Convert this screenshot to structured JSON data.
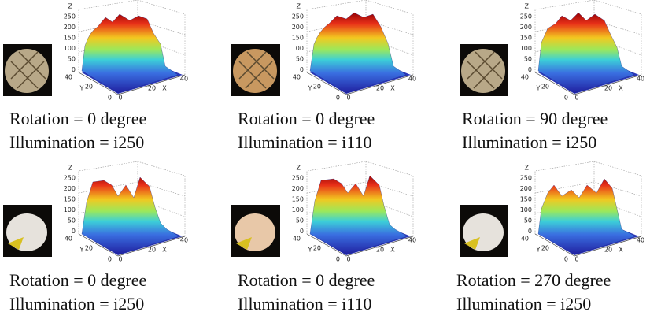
{
  "panels": [
    {
      "caption": [
        "Rotation = 0 degree",
        "Illumination = i250"
      ],
      "axes": {
        "z_label": "Z",
        "z_ticks": [
          250,
          200,
          150,
          100,
          50,
          0
        ],
        "y_label": "Y",
        "y_ticks": [
          40,
          20,
          0
        ],
        "x_label": "X",
        "x_ticks": [
          0,
          20,
          40
        ]
      }
    },
    {
      "caption": [
        "Rotation = 0 degree",
        "Illumination = i110"
      ],
      "axes": {
        "z_label": "Z",
        "z_ticks": [
          250,
          200,
          150,
          100,
          50,
          0
        ],
        "y_label": "Y",
        "y_ticks": [
          40,
          20,
          0
        ],
        "x_label": "X",
        "x_ticks": [
          0,
          20,
          40
        ]
      }
    },
    {
      "caption": [
        "Rotation = 90 degree",
        "Illumination = i250"
      ],
      "axes": {
        "z_label": "Z",
        "z_ticks": [
          250,
          200,
          150,
          100,
          50,
          0
        ],
        "y_label": "Y",
        "y_ticks": [
          40,
          20,
          0
        ],
        "x_label": "X",
        "x_ticks": [
          0,
          20,
          40
        ]
      }
    },
    {
      "caption": [
        "Rotation = 0 degree",
        "Illumination = i250"
      ],
      "axes": {
        "z_label": "Z",
        "z_ticks": [
          250,
          200,
          150,
          100,
          50,
          0
        ],
        "y_label": "Y",
        "y_ticks": [
          40,
          20,
          0
        ],
        "x_label": "X",
        "x_ticks": [
          0,
          20,
          40
        ]
      }
    },
    {
      "caption": [
        "Rotation = 0 degree",
        "Illumination = i110"
      ],
      "axes": {
        "z_label": "Z",
        "z_ticks": [
          250,
          200,
          150,
          100,
          50,
          0
        ],
        "y_label": "Y",
        "y_ticks": [
          40,
          20,
          0
        ],
        "x_label": "X",
        "x_ticks": [
          0,
          20,
          40
        ]
      }
    },
    {
      "caption": [
        "Rotation = 270 degree",
        "Illumination = i250"
      ],
      "axes": {
        "z_label": "Z",
        "z_ticks": [
          250,
          200,
          150,
          100,
          50,
          0
        ],
        "y_label": "Y",
        "y_ticks": [
          40,
          20,
          0
        ],
        "x_label": "X",
        "x_ticks": [
          0,
          20,
          40
        ]
      }
    }
  ]
}
